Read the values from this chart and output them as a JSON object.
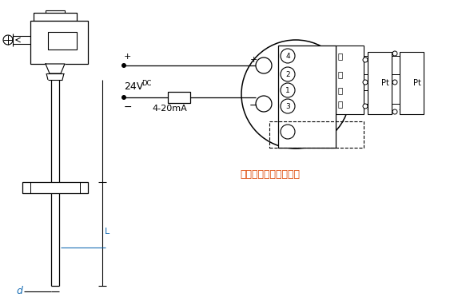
{
  "bg_color": "#ffffff",
  "line_color": "#000000",
  "accent_color": "#1a6eb5",
  "red_text": "#dd4400",
  "fig_width": 5.73,
  "fig_height": 3.82,
  "dpi": 100,
  "note_text": "热电阵：三线或四线制",
  "plus_label": "+",
  "vdc_text": "24V",
  "vdc_sub": "DC",
  "ma_label": "4-20mA",
  "terminal_labels": [
    "4",
    "2",
    "1",
    "3"
  ],
  "wire_labels": [
    "白",
    "白",
    "红",
    "红"
  ],
  "pt_label": "Pt",
  "L_label": "L",
  "d_label": "d"
}
